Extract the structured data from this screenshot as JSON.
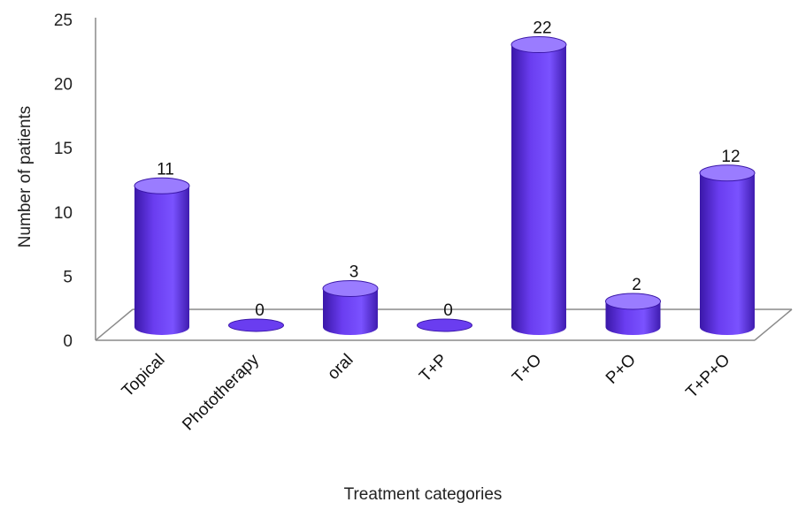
{
  "chart_data": {
    "type": "bar",
    "style": "3d-cylinder",
    "title": "",
    "xlabel": "Treatment categories",
    "ylabel": "Number of patients",
    "categories": [
      "Topical",
      "Phototherapy",
      "oral",
      "T+P",
      "T+O",
      "P+O",
      "T+P+O"
    ],
    "values": [
      11,
      0,
      3,
      0,
      22,
      2,
      12
    ],
    "ylim": [
      0,
      25
    ],
    "yticks": [
      "0",
      "5",
      "10",
      "15",
      "20",
      "25"
    ],
    "grid": false,
    "legend": "none",
    "colors": {
      "bar": "#6a3df0",
      "bar_dark": "#3a17a8",
      "bar_light": "#9a7cff",
      "axis": "#8a8a8a"
    }
  }
}
